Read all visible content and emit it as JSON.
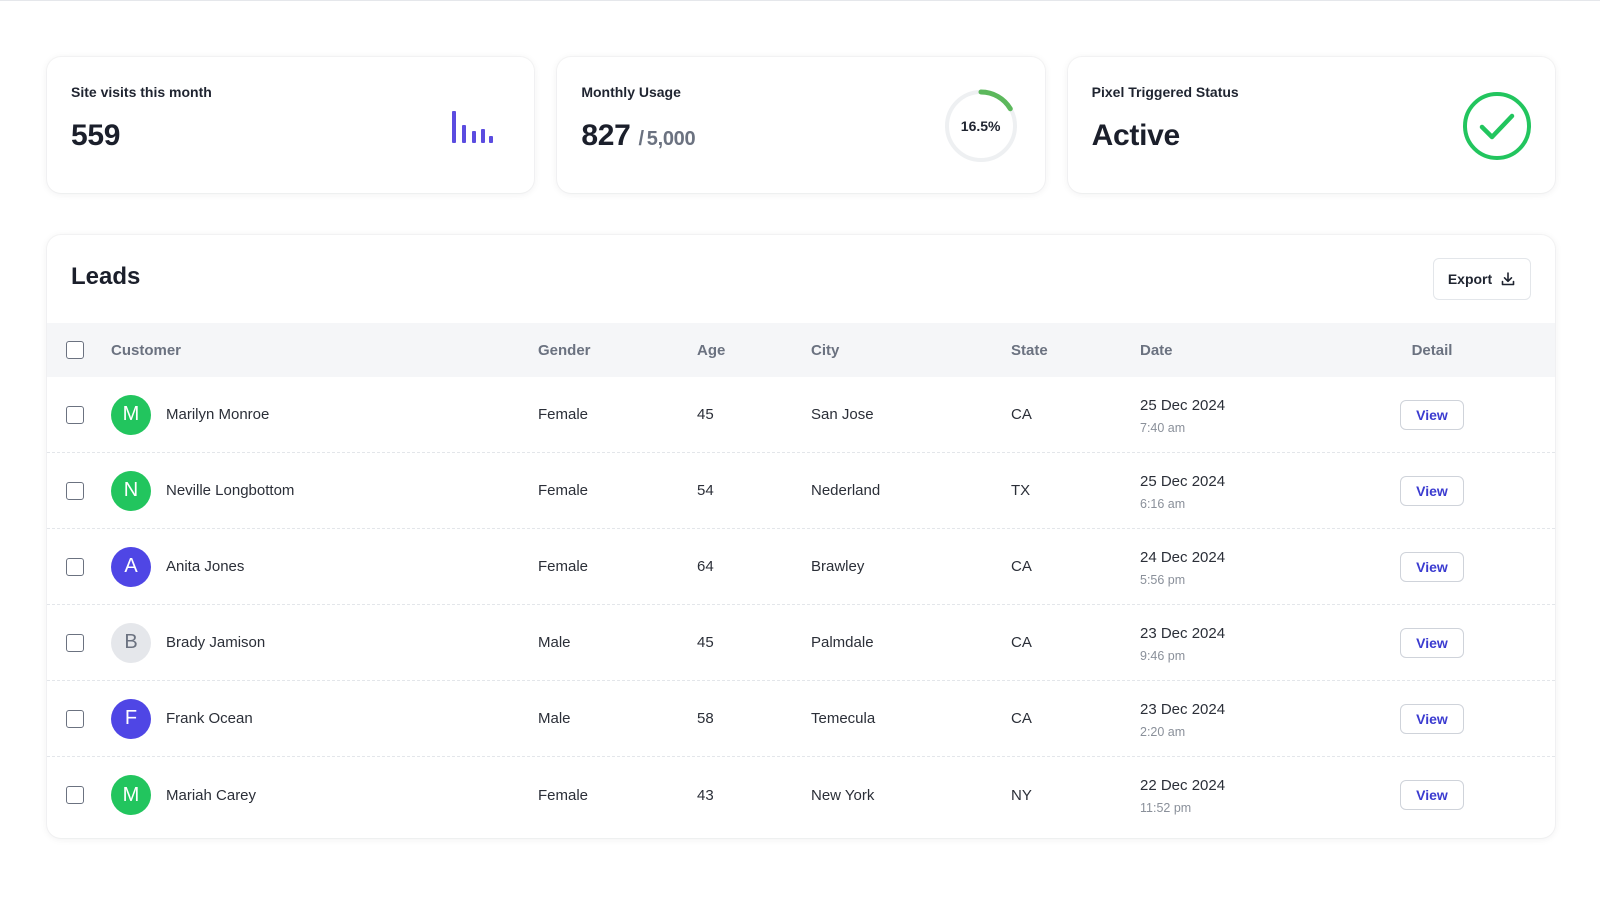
{
  "stats": {
    "site_visits": {
      "label": "Site visits this month",
      "value": "559",
      "icon": "bar-chart-icon",
      "color": "#5b4ce0"
    },
    "monthly_usage": {
      "label": "Monthly Usage",
      "used": "827",
      "slash": "/",
      "limit": "5,000",
      "percent_text": "16.5%",
      "percent": 16.5,
      "color": "#5cb85c"
    },
    "pixel_status": {
      "label": "Pixel Triggered Status",
      "value": "Active",
      "icon": "check-circle-icon",
      "color": "#22c55e"
    }
  },
  "leads": {
    "title": "Leads",
    "export_label": "Export",
    "columns": {
      "customer": "Customer",
      "gender": "Gender",
      "age": "Age",
      "city": "City",
      "state": "State",
      "date": "Date",
      "detail": "Detail"
    },
    "rows": [
      {
        "initial": "M",
        "avatar_color": "#22c55e",
        "avatar_text_color": "#ffffff",
        "name": "Marilyn Monroe",
        "gender": "Female",
        "age": "45",
        "city": "San Jose",
        "state": "CA",
        "date": "25 Dec 2024",
        "time": "7:40 am",
        "action": "View"
      },
      {
        "initial": "N",
        "avatar_color": "#22c55e",
        "avatar_text_color": "#ffffff",
        "name": "Neville Longbottom",
        "gender": "Female",
        "age": "54",
        "city": "Nederland",
        "state": "TX",
        "date": "25 Dec 2024",
        "time": "6:16 am",
        "action": "View"
      },
      {
        "initial": "A",
        "avatar_color": "#4f46e5",
        "avatar_text_color": "#ffffff",
        "name": "Anita Jones",
        "gender": "Female",
        "age": "64",
        "city": "Brawley",
        "state": "CA",
        "date": "24 Dec 2024",
        "time": "5:56 pm",
        "action": "View"
      },
      {
        "initial": "B",
        "avatar_color": "#e5e7eb",
        "avatar_text_color": "#6b7280",
        "name": "Brady Jamison",
        "gender": "Male",
        "age": "45",
        "city": "Palmdale",
        "state": "CA",
        "date": "23 Dec 2024",
        "time": "9:46 pm",
        "action": "View"
      },
      {
        "initial": "F",
        "avatar_color": "#4f46e5",
        "avatar_text_color": "#ffffff",
        "name": "Frank Ocean",
        "gender": "Male",
        "age": "58",
        "city": "Temecula",
        "state": "CA",
        "date": "23 Dec 2024",
        "time": "2:20 am",
        "action": "View"
      },
      {
        "initial": "M",
        "avatar_color": "#22c55e",
        "avatar_text_color": "#ffffff",
        "name": "Mariah Carey",
        "gender": "Female",
        "age": "43",
        "city": "New York",
        "state": "NY",
        "date": "22 Dec 2024",
        "time": "11:52 pm",
        "action": "View"
      }
    ]
  }
}
